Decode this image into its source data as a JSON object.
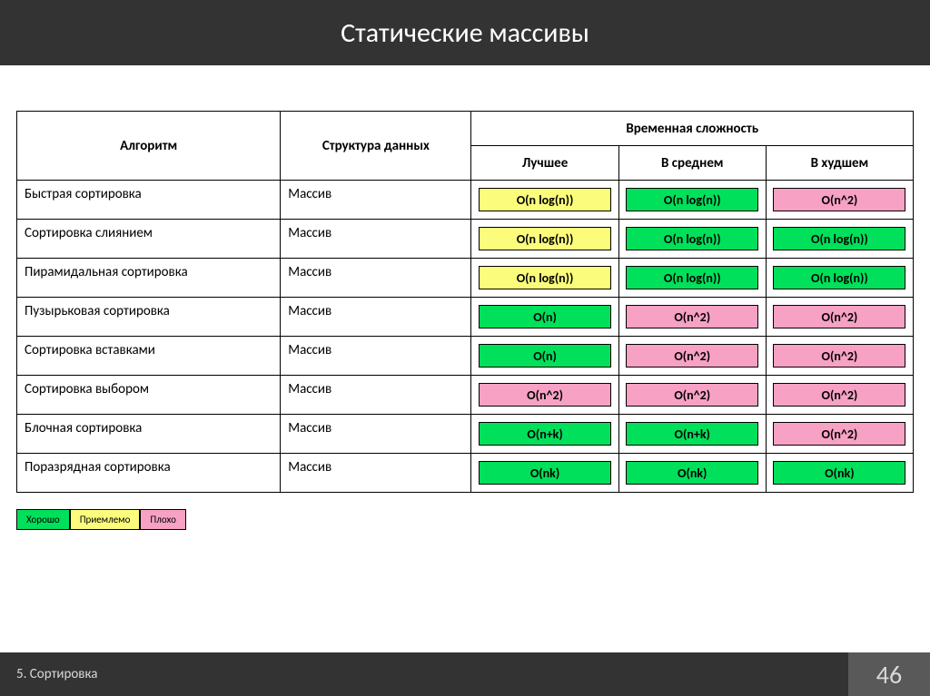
{
  "colors": {
    "good": "#00e05a",
    "ok": "#fcfc7c",
    "bad": "#f7a1c4",
    "header_bg": "#333333",
    "footer_right_bg": "#595959"
  },
  "title": "Статические массивы",
  "table": {
    "headers": {
      "algorithm": "Алгоритм",
      "data_structure": "Структура данных",
      "time_complexity": "Временная сложность",
      "best": "Лучшее",
      "avg": "В среднем",
      "worst": "В худшем"
    },
    "rows": [
      {
        "algo": "Быстрая сортировка",
        "ds": "Массив",
        "best": {
          "v": "O(n log(n))",
          "c": "ok"
        },
        "avg": {
          "v": "O(n log(n))",
          "c": "good"
        },
        "worst": {
          "v": "O(n^2)",
          "c": "bad"
        }
      },
      {
        "algo": "Сортировка слиянием",
        "ds": "Массив",
        "best": {
          "v": "O(n log(n))",
          "c": "ok"
        },
        "avg": {
          "v": "O(n log(n))",
          "c": "good"
        },
        "worst": {
          "v": "O(n log(n))",
          "c": "good"
        }
      },
      {
        "algo": "Пирамидальная сортировка",
        "ds": "Массив",
        "best": {
          "v": "O(n log(n))",
          "c": "ok"
        },
        "avg": {
          "v": "O(n log(n))",
          "c": "good"
        },
        "worst": {
          "v": "O(n log(n))",
          "c": "good"
        }
      },
      {
        "algo": "Пузырьковая сортировка",
        "ds": "Массив",
        "best": {
          "v": "O(n)",
          "c": "good"
        },
        "avg": {
          "v": "O(n^2)",
          "c": "bad"
        },
        "worst": {
          "v": "O(n^2)",
          "c": "bad"
        }
      },
      {
        "algo": "Сортировка вставками",
        "ds": "Массив",
        "best": {
          "v": "O(n)",
          "c": "good"
        },
        "avg": {
          "v": "O(n^2)",
          "c": "bad"
        },
        "worst": {
          "v": "O(n^2)",
          "c": "bad"
        }
      },
      {
        "algo": "Сортировка выбором",
        "ds": "Массив",
        "best": {
          "v": "O(n^2)",
          "c": "bad"
        },
        "avg": {
          "v": "O(n^2)",
          "c": "bad"
        },
        "worst": {
          "v": "O(n^2)",
          "c": "bad"
        }
      },
      {
        "algo": "Блочная сортировка",
        "ds": "Массив",
        "best": {
          "v": "O(n+k)",
          "c": "good"
        },
        "avg": {
          "v": "O(n+k)",
          "c": "good"
        },
        "worst": {
          "v": "O(n^2)",
          "c": "bad"
        }
      },
      {
        "algo": "Поразрядная сортировка",
        "ds": "Массив",
        "best": {
          "v": "O(nk)",
          "c": "good"
        },
        "avg": {
          "v": "O(nk)",
          "c": "good"
        },
        "worst": {
          "v": "O(nk)",
          "c": "good"
        }
      }
    ]
  },
  "legend": {
    "good": "Хорошо",
    "ok": "Приемлемо",
    "bad": "Плохо"
  },
  "footer": {
    "section": "5. Сортировка",
    "page": "46"
  }
}
